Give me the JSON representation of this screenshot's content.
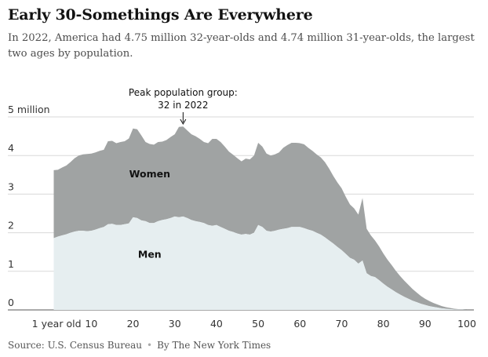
{
  "title": "Early 30-Somethings Are Everywhere",
  "subtitle": "In 2022, America had 4.75 million 32-year-olds and 4.74 million 31-year-olds, the largest two ages by population.",
  "footer": {
    "source": "Source: U.S. Census Bureau",
    "separator": "•",
    "byline": "By The New York Times"
  },
  "chart_data": {
    "type": "area",
    "stacked": true,
    "annotation": {
      "line1": "Peak population group:",
      "line2": "32 in 2022",
      "x": 32
    },
    "ytick_labels": [
      "5 million",
      "4",
      "3",
      "2",
      "1",
      "0"
    ],
    "ytick_values": [
      5,
      4,
      3,
      2,
      1,
      0
    ],
    "ylim": [
      0,
      5
    ],
    "xlim": [
      0,
      100
    ],
    "xtick_labels": [
      "1 year old",
      "10",
      "20",
      "30",
      "40",
      "50",
      "60",
      "70",
      "80",
      "90",
      "100"
    ],
    "xtick_values": [
      1,
      10,
      20,
      30,
      40,
      50,
      60,
      70,
      80,
      90,
      100
    ],
    "grid": true,
    "colors": {
      "men": "#e6eef0",
      "women": "#a0a3a3",
      "grid": "#d9d9d9"
    },
    "series": [
      {
        "name": "Men",
        "x": [
          0,
          1,
          2,
          3,
          4,
          5,
          6,
          7,
          8,
          9,
          10,
          11,
          12,
          13,
          14,
          15,
          16,
          17,
          18,
          19,
          20,
          21,
          22,
          23,
          24,
          25,
          26,
          27,
          28,
          29,
          30,
          31,
          32,
          33,
          34,
          35,
          36,
          37,
          38,
          39,
          40,
          41,
          42,
          43,
          44,
          45,
          46,
          47,
          48,
          49,
          50,
          51,
          52,
          53,
          54,
          55,
          56,
          57,
          58,
          59,
          60,
          61,
          62,
          63,
          64,
          65,
          66,
          67,
          68,
          69,
          70,
          71,
          72,
          73,
          74,
          75,
          76,
          77,
          78,
          79,
          80,
          81,
          82,
          83,
          84,
          85,
          86,
          87,
          88,
          89,
          90,
          91,
          92,
          93,
          94,
          95,
          96,
          97,
          98,
          99,
          100
        ],
        "values": [
          1.88,
          1.86,
          1.9,
          1.93,
          1.96,
          2.0,
          2.03,
          2.05,
          2.05,
          2.04,
          2.05,
          2.08,
          2.12,
          2.15,
          2.22,
          2.23,
          2.2,
          2.2,
          2.22,
          2.24,
          2.4,
          2.38,
          2.32,
          2.3,
          2.25,
          2.25,
          2.3,
          2.33,
          2.35,
          2.38,
          2.42,
          2.4,
          2.42,
          2.38,
          2.33,
          2.3,
          2.28,
          2.25,
          2.2,
          2.18,
          2.2,
          2.15,
          2.1,
          2.05,
          2.02,
          1.98,
          1.95,
          1.97,
          1.95,
          2.0,
          2.2,
          2.15,
          2.05,
          2.03,
          2.05,
          2.08,
          2.1,
          2.12,
          2.15,
          2.15,
          2.15,
          2.12,
          2.08,
          2.05,
          2.0,
          1.95,
          1.88,
          1.8,
          1.72,
          1.63,
          1.55,
          1.45,
          1.35,
          1.3,
          1.2,
          1.28,
          0.95,
          0.88,
          0.85,
          0.77,
          0.68,
          0.6,
          0.53,
          0.46,
          0.4,
          0.34,
          0.29,
          0.24,
          0.2,
          0.16,
          0.13,
          0.1,
          0.08,
          0.06,
          0.04,
          0.03,
          0.02,
          0.01,
          0.01,
          0.01,
          0.0
        ]
      },
      {
        "name": "Women",
        "x": [
          0,
          1,
          2,
          3,
          4,
          5,
          6,
          7,
          8,
          9,
          10,
          11,
          12,
          13,
          14,
          15,
          16,
          17,
          18,
          19,
          20,
          21,
          22,
          23,
          24,
          25,
          26,
          27,
          28,
          29,
          30,
          31,
          32,
          33,
          34,
          35,
          36,
          37,
          38,
          39,
          40,
          41,
          42,
          43,
          44,
          45,
          46,
          47,
          48,
          49,
          50,
          51,
          52,
          53,
          54,
          55,
          56,
          57,
          58,
          59,
          60,
          61,
          62,
          63,
          64,
          65,
          66,
          67,
          68,
          69,
          70,
          71,
          72,
          73,
          74,
          75,
          76,
          77,
          78,
          79,
          80,
          81,
          82,
          83,
          84,
          85,
          86,
          87,
          88,
          89,
          90,
          91,
          92,
          93,
          94,
          95,
          96,
          97,
          98,
          99,
          100
        ],
        "values": [
          1.78,
          1.76,
          1.73,
          1.76,
          1.78,
          1.83,
          1.9,
          1.95,
          1.98,
          2.0,
          2.0,
          2.0,
          2.0,
          2.0,
          2.15,
          2.15,
          2.12,
          2.15,
          2.15,
          2.2,
          2.3,
          2.3,
          2.2,
          2.05,
          2.05,
          2.03,
          2.05,
          2.03,
          2.05,
          2.1,
          2.13,
          2.34,
          2.33,
          2.27,
          2.22,
          2.2,
          2.15,
          2.1,
          2.12,
          2.25,
          2.23,
          2.2,
          2.13,
          2.05,
          2.0,
          1.95,
          1.9,
          1.95,
          1.95,
          2.0,
          2.13,
          2.08,
          2.0,
          1.97,
          1.98,
          2.0,
          2.1,
          2.15,
          2.18,
          2.18,
          2.17,
          2.17,
          2.12,
          2.07,
          2.03,
          2.0,
          1.95,
          1.86,
          1.75,
          1.67,
          1.6,
          1.48,
          1.38,
          1.33,
          1.27,
          1.62,
          1.15,
          1.05,
          0.95,
          0.87,
          0.78,
          0.7,
          0.63,
          0.55,
          0.48,
          0.42,
          0.36,
          0.3,
          0.25,
          0.2,
          0.16,
          0.13,
          0.1,
          0.08,
          0.06,
          0.04,
          0.03,
          0.02,
          0.01,
          0.01,
          0.02
        ]
      }
    ],
    "series_labels": {
      "men": "Men",
      "women": "Women"
    }
  }
}
